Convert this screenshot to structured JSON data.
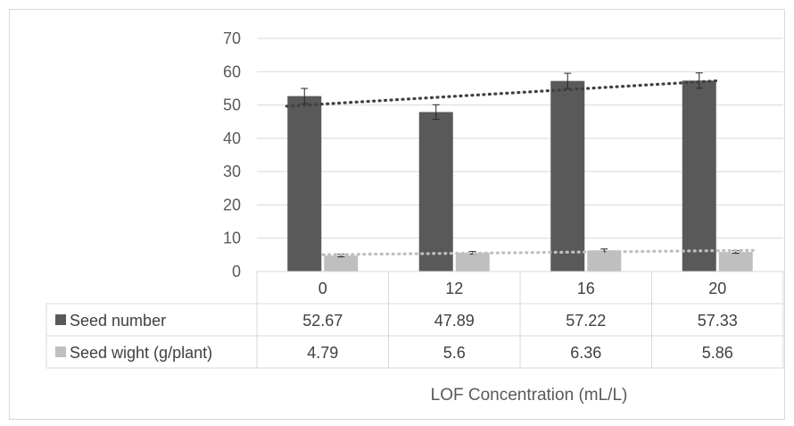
{
  "chart_data": {
    "type": "bar",
    "title": "",
    "xlabel": "LOF Concentration (mL/L)",
    "ylabel": "",
    "ylim": [
      0,
      70
    ],
    "yticks": [
      0,
      10,
      20,
      30,
      40,
      50,
      60,
      70
    ],
    "categories": [
      "0",
      "12",
      "16",
      "20"
    ],
    "grid": true,
    "legend": "data table",
    "trendlines": "linear, dotted, one per series",
    "series": [
      {
        "name": "Seed number",
        "values": [
          52.67,
          47.89,
          57.22,
          57.33
        ],
        "values_text": [
          "52.67",
          "47.89",
          "57.22",
          "57.33"
        ],
        "error": [
          2.3,
          2.2,
          2.3,
          2.3
        ],
        "color": "#595959",
        "trend_color": "#404040"
      },
      {
        "name": "Seed wight (g/plant)",
        "values": [
          4.79,
          5.6,
          6.36,
          5.86
        ],
        "values_text": [
          "4.79",
          "5.6",
          "6.36",
          "5.86"
        ],
        "error": [
          0.4,
          0.4,
          0.4,
          0.4
        ],
        "color": "#bfbfbf",
        "trend_color": "#bfbfbf"
      }
    ]
  }
}
